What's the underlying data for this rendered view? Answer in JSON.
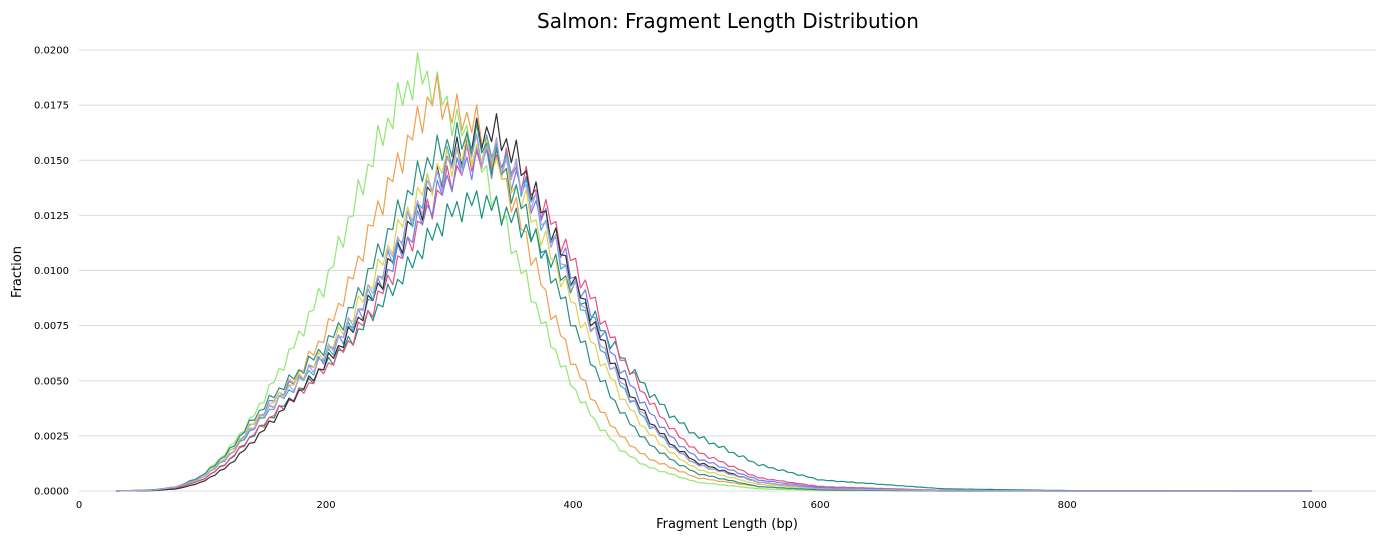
{
  "chart_data": {
    "type": "line",
    "title": "Salmon: Fragment Length Distribution",
    "xlabel": "Fragment Length (bp)",
    "ylabel": "Fraction",
    "xlim": [
      0,
      1050
    ],
    "ylim": [
      0,
      0.02
    ],
    "x_ticks": [
      0,
      200,
      400,
      600,
      800,
      1000
    ],
    "y_ticks": [
      0.0,
      0.0025,
      0.005,
      0.0075,
      0.01,
      0.0125,
      0.015,
      0.0175,
      0.02
    ],
    "x_tick_labels": [
      "0",
      "200",
      "400",
      "600",
      "800",
      "1000"
    ],
    "y_tick_labels": [
      "0.0000",
      "0.0025",
      "0.0050",
      "0.0075",
      "0.0100",
      "0.0125",
      "0.0150",
      "0.0175",
      "0.0200"
    ],
    "grid": "horizontal",
    "legend": "none",
    "series": [
      {
        "color": "#90e870",
        "x": [
          30,
          60,
          80,
          100,
          120,
          140,
          160,
          180,
          200,
          220,
          240,
          260,
          275,
          290,
          300,
          320,
          340,
          360,
          380,
          400,
          420,
          440,
          460,
          500,
          550,
          600,
          700,
          800,
          1000
        ],
        "y": [
          0,
          5e-05,
          0.0002,
          0.0007,
          0.0018,
          0.0033,
          0.0052,
          0.0072,
          0.0095,
          0.0125,
          0.0155,
          0.0178,
          0.019,
          0.0182,
          0.0172,
          0.0155,
          0.0128,
          0.0098,
          0.007,
          0.0047,
          0.003,
          0.0018,
          0.0011,
          0.0004,
          0.0001,
          3e-05,
          0,
          0,
          0
        ]
      },
      {
        "color": "#f0a050",
        "x": [
          30,
          60,
          80,
          100,
          120,
          140,
          160,
          180,
          200,
          220,
          240,
          260,
          275,
          288,
          300,
          320,
          340,
          360,
          380,
          400,
          420,
          440,
          460,
          500,
          550,
          600,
          700,
          800,
          1000
        ],
        "y": [
          0,
          4e-05,
          0.0002,
          0.0006,
          0.0015,
          0.0028,
          0.0041,
          0.0055,
          0.0072,
          0.0095,
          0.0125,
          0.015,
          0.0168,
          0.0181,
          0.0172,
          0.0168,
          0.0148,
          0.0118,
          0.0085,
          0.0058,
          0.0038,
          0.0024,
          0.0015,
          0.0006,
          0.0002,
          5e-05,
          0,
          0,
          0
        ]
      },
      {
        "color": "#1a9080",
        "x": [
          30,
          60,
          80,
          100,
          120,
          140,
          160,
          180,
          200,
          220,
          240,
          260,
          280,
          300,
          320,
          340,
          360,
          380,
          400,
          420,
          440,
          460,
          480,
          500,
          550,
          600,
          700,
          800,
          1000
        ],
        "y": [
          0,
          3e-05,
          0.00015,
          0.0005,
          0.0013,
          0.0025,
          0.0036,
          0.0046,
          0.0057,
          0.0068,
          0.0082,
          0.0096,
          0.0112,
          0.0126,
          0.0132,
          0.0128,
          0.012,
          0.0106,
          0.0092,
          0.0076,
          0.006,
          0.0046,
          0.0034,
          0.0025,
          0.0012,
          0.0005,
          0.0001,
          2e-05,
          0
        ]
      },
      {
        "color": "#e85080",
        "x": [
          30,
          60,
          80,
          100,
          120,
          140,
          160,
          180,
          200,
          220,
          240,
          260,
          280,
          300,
          320,
          340,
          360,
          380,
          400,
          420,
          440,
          460,
          480,
          500,
          550,
          600,
          700,
          800,
          1000
        ],
        "y": [
          0,
          3e-05,
          0.00015,
          0.0005,
          0.0013,
          0.0025,
          0.0036,
          0.0045,
          0.0056,
          0.0068,
          0.0085,
          0.0105,
          0.0125,
          0.0142,
          0.0152,
          0.015,
          0.0142,
          0.0125,
          0.0104,
          0.0082,
          0.006,
          0.0042,
          0.0028,
          0.0018,
          0.0006,
          0.0002,
          3e-05,
          0,
          0
        ]
      },
      {
        "color": "#7080e8",
        "x": [
          30,
          60,
          80,
          100,
          120,
          140,
          160,
          180,
          200,
          220,
          240,
          260,
          280,
          300,
          320,
          340,
          360,
          380,
          400,
          420,
          440,
          460,
          480,
          500,
          550,
          600,
          700,
          800,
          1000
        ],
        "y": [
          0,
          4e-05,
          0.0002,
          0.0006,
          0.0016,
          0.003,
          0.0043,
          0.0052,
          0.0062,
          0.0074,
          0.009,
          0.0108,
          0.0126,
          0.0142,
          0.015,
          0.015,
          0.0138,
          0.012,
          0.0098,
          0.0075,
          0.0054,
          0.0037,
          0.0024,
          0.0015,
          0.0005,
          0.00015,
          2e-05,
          0,
          0
        ]
      },
      {
        "color": "#303030",
        "x": [
          30,
          60,
          80,
          100,
          120,
          140,
          160,
          180,
          200,
          220,
          240,
          260,
          280,
          300,
          320,
          335,
          350,
          360,
          380,
          400,
          420,
          440,
          460,
          480,
          500,
          550,
          600,
          700,
          1000
        ],
        "y": [
          0,
          2e-05,
          0.0001,
          0.0004,
          0.0011,
          0.0022,
          0.0034,
          0.0046,
          0.0058,
          0.0072,
          0.009,
          0.0112,
          0.0132,
          0.015,
          0.016,
          0.0164,
          0.0155,
          0.0145,
          0.0122,
          0.0096,
          0.0072,
          0.005,
          0.0033,
          0.0021,
          0.0013,
          0.0004,
          0.0001,
          1e-05,
          0
        ]
      },
      {
        "color": "#40a8d0",
        "x": [
          30,
          60,
          80,
          100,
          120,
          140,
          160,
          180,
          200,
          220,
          240,
          260,
          280,
          300,
          320,
          340,
          360,
          380,
          400,
          420,
          440,
          460,
          480,
          500,
          550,
          600,
          700,
          800,
          1000
        ],
        "y": [
          0,
          4e-05,
          0.0002,
          0.0006,
          0.0015,
          0.0028,
          0.004,
          0.005,
          0.0061,
          0.0075,
          0.0093,
          0.0114,
          0.0135,
          0.015,
          0.0158,
          0.0152,
          0.014,
          0.0118,
          0.0093,
          0.0068,
          0.0047,
          0.0031,
          0.002,
          0.0012,
          0.0004,
          0.0001,
          1e-05,
          0,
          0
        ]
      },
      {
        "color": "#e0d050",
        "x": [
          30,
          60,
          80,
          100,
          120,
          140,
          160,
          180,
          200,
          220,
          240,
          260,
          280,
          300,
          320,
          340,
          360,
          380,
          400,
          420,
          440,
          460,
          480,
          500,
          550,
          600,
          700,
          800,
          1000
        ],
        "y": [
          0,
          4e-05,
          0.0002,
          0.0006,
          0.0016,
          0.003,
          0.0042,
          0.0052,
          0.0063,
          0.0078,
          0.0098,
          0.012,
          0.0138,
          0.015,
          0.0155,
          0.0148,
          0.0132,
          0.011,
          0.0085,
          0.0062,
          0.0042,
          0.0027,
          0.0017,
          0.001,
          0.0003,
          0.0001,
          1e-05,
          0,
          0
        ]
      },
      {
        "color": "#2a9080",
        "x": [
          30,
          60,
          80,
          100,
          120,
          140,
          160,
          180,
          200,
          220,
          240,
          260,
          280,
          300,
          320,
          340,
          360,
          380,
          400,
          420,
          440,
          460,
          480,
          500,
          550,
          600,
          700,
          800,
          1000
        ],
        "y": [
          0,
          5e-05,
          0.0002,
          0.0007,
          0.0017,
          0.0032,
          0.0045,
          0.0055,
          0.0066,
          0.0082,
          0.0105,
          0.0128,
          0.0148,
          0.0158,
          0.016,
          0.0148,
          0.0128,
          0.0102,
          0.0076,
          0.0053,
          0.0035,
          0.0022,
          0.0014,
          0.0008,
          0.0002,
          5e-05,
          0,
          0,
          0
        ]
      },
      {
        "color": "#b0a0e0",
        "x": [
          30,
          60,
          80,
          100,
          120,
          140,
          160,
          180,
          200,
          220,
          240,
          260,
          280,
          300,
          320,
          340,
          360,
          380,
          400,
          420,
          440,
          460,
          480,
          500,
          550,
          600,
          700,
          800,
          1000
        ],
        "y": [
          0,
          4e-05,
          0.0002,
          0.0006,
          0.0015,
          0.0029,
          0.0041,
          0.0051,
          0.0062,
          0.0076,
          0.0094,
          0.0115,
          0.0134,
          0.0148,
          0.0155,
          0.0152,
          0.0139,
          0.0118,
          0.0093,
          0.0069,
          0.0048,
          0.0032,
          0.002,
          0.0012,
          0.0004,
          0.0001,
          1e-05,
          0,
          0
        ]
      }
    ]
  }
}
